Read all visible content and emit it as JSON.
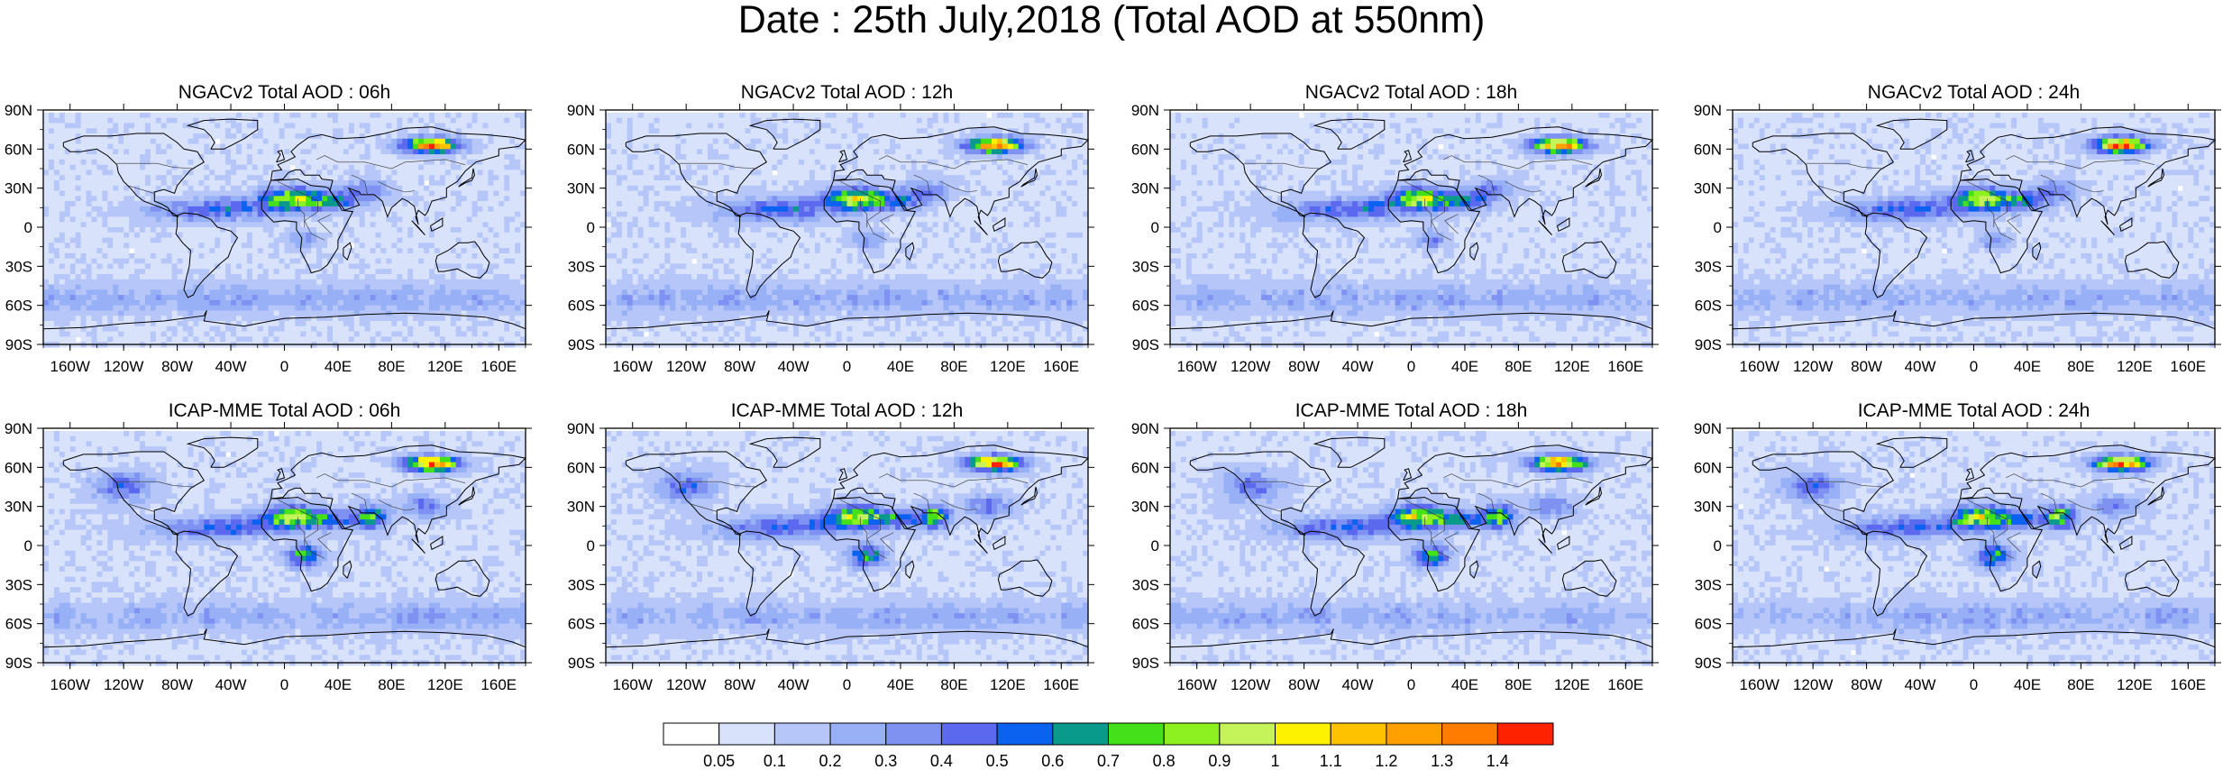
{
  "title": "Date : 25th July,2018 (Total AOD at 550nm)",
  "panels": [
    {
      "title": "NGACv2 Total AOD : 06h",
      "model": "ngac"
    },
    {
      "title": "NGACv2 Total AOD : 12h",
      "model": "ngac"
    },
    {
      "title": "NGACv2 Total AOD : 18h",
      "model": "ngac"
    },
    {
      "title": "NGACv2 Total AOD : 24h",
      "model": "ngac"
    },
    {
      "title": "ICAP-MME Total AOD : 06h",
      "model": "icap"
    },
    {
      "title": "ICAP-MME Total AOD : 12h",
      "model": "icap"
    },
    {
      "title": "ICAP-MME Total AOD : 18h",
      "model": "icap"
    },
    {
      "title": "ICAP-MME Total AOD : 24h",
      "model": "icap"
    }
  ],
  "axes": {
    "lat_ticks": [
      "90N",
      "60N",
      "30N",
      "0",
      "30S",
      "60S",
      "90S"
    ],
    "lon_ticks": [
      "160W",
      "120W",
      "80W",
      "40W",
      "0",
      "40E",
      "80E",
      "120E",
      "160E"
    ]
  },
  "colorbar": {
    "labels": [
      "0.05",
      "0.1",
      "0.2",
      "0.3",
      "0.4",
      "0.5",
      "0.6",
      "0.7",
      "0.8",
      "0.9",
      "1",
      "1.1",
      "1.2",
      "1.3",
      "1.4"
    ],
    "colors": [
      "#ffffff",
      "#d8e2fb",
      "#b6c6f8",
      "#97b0f6",
      "#7f92f2",
      "#5b69ee",
      "#0b62f0",
      "#0a9a8c",
      "#44e01a",
      "#8cf11e",
      "#c4f35a",
      "#fff200",
      "#ffc200",
      "#ffa000",
      "#ff7c00",
      "#ff2200"
    ]
  }
}
